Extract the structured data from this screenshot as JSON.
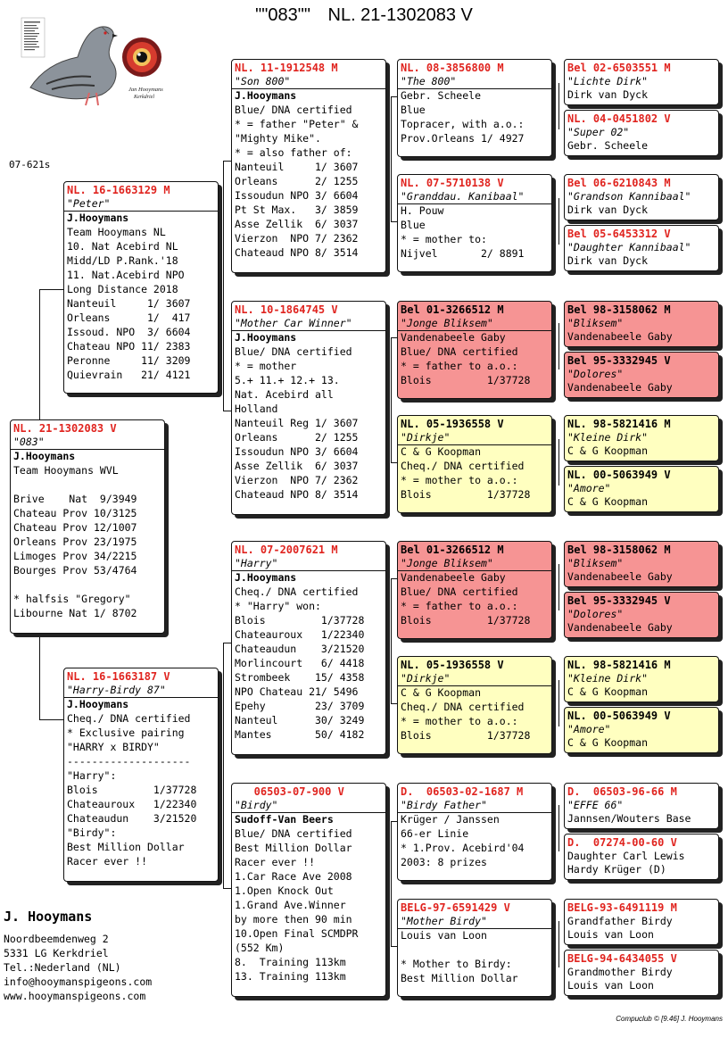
{
  "header": {
    "title": "\"\"083\"\"",
    "ring": "NL. 21-1302083 V"
  },
  "logo": {
    "pigeon_caption": "Jan Hooymans",
    "pigeon_caption2": "Kerkdriel"
  },
  "side_code": "07-621s",
  "pigeons": {
    "subject": {
      "ring": "NL. 21-1302083 V",
      "name": "\"083\"",
      "breeder": "J.Hooymans",
      "lines": [
        "Team Hooymans WVL",
        "",
        "Brive    Nat  9/3949",
        "Chateau Prov 10/3125",
        "Chateau Prov 12/1007",
        "Orleans Prov 23/1975",
        "Limoges Prov 34/2215",
        "Bourges Prov 53/4764",
        "",
        "* halfsis \"Gregory\"",
        "Libourne Nat 1/ 8702"
      ]
    },
    "father": {
      "ring": "NL. 16-1663129 M",
      "name": "\"Peter\"",
      "breeder": "J.Hooymans",
      "lines": [
        "Team Hooymans NL",
        "10. Nat Acebird NL",
        "Midd/LD P.Rank.'18",
        "11. Nat.Acebird NPO",
        "Long Distance 2018",
        "Nanteuil     1/ 3607",
        "Orleans      1/  417",
        "Issoud. NPO  3/ 6604",
        "Chateau NPO 11/ 2383",
        "Peronne     11/ 3209",
        "Quievrain   21/ 4121"
      ]
    },
    "mother": {
      "ring": "NL. 16-1663187 V",
      "name": "\"Harry-Birdy 87\"",
      "breeder": "J.Hooymans",
      "lines": [
        "Cheq./ DNA certified",
        "* Exclusive pairing",
        "\"HARRY x BIRDY\"",
        "--------------------",
        "\"Harry\":",
        "Blois         1/37728",
        "Chateauroux   1/22340",
        "Chateaudun    3/21520",
        "\"Birdy\":",
        "Best Million Dollar",
        "Racer ever !!"
      ]
    },
    "ff": {
      "ring": "NL. 11-1912548 M",
      "name": "\"Son 800\"",
      "breeder": "J.Hooymans",
      "lines": [
        "Blue/ DNA certified",
        "* = father \"Peter\" &",
        "\"Mighty Mike\".",
        "* = also father of:",
        "Nanteuil     1/ 3607",
        "Orleans      2/ 1255",
        "Issoudun NPO 3/ 6604",
        "Pt St Max.   3/ 3859",
        "Asse Zellik  6/ 3037",
        "Vierzon  NPO 7/ 2362",
        "Chateaud NPO 8/ 3514"
      ]
    },
    "fm": {
      "ring": "NL. 10-1864745 V",
      "name": "\"Mother Car Winner\"",
      "breeder": "J.Hooymans",
      "lines": [
        "Blue/ DNA certified",
        "* = mother",
        "5.+ 11.+ 12.+ 13.",
        "Nat. Acebird all",
        "Holland",
        "Nanteuil Reg 1/ 3607",
        "Orleans      2/ 1255",
        "Issoudun NPO 3/ 6604",
        "Asse Zellik  6/ 3037",
        "Vierzon  NPO 7/ 2362",
        "Chateaud NPO 8/ 3514"
      ]
    },
    "mf": {
      "ring": "NL. 07-2007621 M",
      "name": "\"Harry\"",
      "breeder": "J.Hooymans",
      "lines": [
        "Cheq./ DNA certified",
        "* \"Harry\" won:",
        "Blois         1/37728",
        "Chateauroux   1/22340",
        "Chateaudun    3/21520",
        "Morlincourt   6/ 4418",
        "Strombeek    15/ 4358",
        "NPO Chateau 21/ 5496",
        "Epehy        23/ 3709",
        "Nanteul      30/ 3249",
        "Mantes       50/ 4182"
      ]
    },
    "mm": {
      "ring": "   06503-07-900 V",
      "name": "\"Birdy\"",
      "breeder": "Sudoff-Van Beers",
      "lines": [
        "Blue/ DNA certified",
        "Best Million Dollar",
        "Racer ever !!",
        "1.Car Race Ave 2008",
        "1.Open Knock Out",
        "1.Grand Ave.Winner",
        "by more then 90 min",
        "10.Open Final SCMDPR",
        "(552 Km)",
        "8.  Training 113km",
        "13. Training 113km"
      ]
    },
    "fff": {
      "ring": "NL. 08-3856800 M",
      "name": "\"The 800\"",
      "breeder": "Gebr. Scheele",
      "lines": [
        "Blue",
        "Topracer, with a.o.:",
        "Prov.Orleans 1/ 4927"
      ]
    },
    "ffm": {
      "ring": "NL. 07-5710138 V",
      "name": "\"Granddau. Kanibaal\"",
      "breeder": "H. Pouw",
      "lines": [
        "Blue",
        "* = mother to:",
        "Nijvel       2/ 8891"
      ]
    },
    "fmf": {
      "ring": "Bel 01-3266512 M",
      "name": "\"Jonge Bliksem\"",
      "breeder": "Vandenabeele Gaby",
      "lines": [
        "Blue/ DNA certified",
        "* = father to a.o.:",
        "Blois         1/37728"
      ]
    },
    "fmm": {
      "ring": "NL. 05-1936558 V",
      "name": "\"Dirkje\"",
      "breeder": "C & G Koopman",
      "lines": [
        "Cheq./ DNA certified",
        "* = mother to a.o.:",
        "Blois         1/37728"
      ]
    },
    "mff": {
      "ring": "Bel 01-3266512 M",
      "name": "\"Jonge Bliksem\"",
      "breeder": "Vandenabeele Gaby",
      "lines": [
        "Blue/ DNA certified",
        "* = father to a.o.:",
        "Blois         1/37728"
      ]
    },
    "mfm": {
      "ring": "NL. 05-1936558 V",
      "name": "\"Dirkje\"",
      "breeder": "C & G Koopman",
      "lines": [
        "Cheq./ DNA certified",
        "* = mother to a.o.:",
        "Blois         1/37728"
      ]
    },
    "mmf": {
      "ring": "D.  06503-02-1687 M",
      "name": "\"Birdy Father\"",
      "breeder": "Krüger / Janssen",
      "lines": [
        "66-er Linie",
        "* 1.Prov. Acebird'04",
        "2003: 8 prizes"
      ]
    },
    "mmm": {
      "ring": "BELG-97-6591429 V",
      "name": "\"Mother Birdy\"",
      "breeder": "Louis van Loon",
      "lines": [
        "",
        "* Mother to Birdy:",
        "Best Million Dollar"
      ]
    },
    "g1": {
      "ring": "Bel 02-6503551 M",
      "name": "\"Lichte Dirk\"",
      "breeder": "Dirk van Dyck"
    },
    "g2": {
      "ring": "NL. 04-0451802 V",
      "name": "\"Super 02\"",
      "breeder": "Gebr. Scheele"
    },
    "g3": {
      "ring": "Bel 06-6210843 M",
      "name": "\"Grandson Kannibaal\"",
      "breeder": "Dirk van Dyck"
    },
    "g4": {
      "ring": "Bel 05-6453312 V",
      "name": "\"Daughter Kannibaal\"",
      "breeder": "Dirk van Dyck"
    },
    "g5": {
      "ring": "Bel 98-3158062 M",
      "name": "\"Bliksem\"",
      "breeder": "Vandenabeele Gaby"
    },
    "g6": {
      "ring": "Bel 95-3332945 V",
      "name": "\"Dolores\"",
      "breeder": "Vandenabeele Gaby"
    },
    "g7": {
      "ring": "NL. 98-5821416 M",
      "name": "\"Kleine Dirk\"",
      "breeder": "C & G Koopman"
    },
    "g8": {
      "ring": "NL. 00-5063949 V",
      "name": "\"Amore\"",
      "breeder": "C & G Koopman"
    },
    "g9": {
      "ring": "Bel 98-3158062 M",
      "name": "\"Bliksem\"",
      "breeder": "Vandenabeele Gaby"
    },
    "g10": {
      "ring": "Bel 95-3332945 V",
      "name": "\"Dolores\"",
      "breeder": "Vandenabeele Gaby"
    },
    "g11": {
      "ring": "NL. 98-5821416 M",
      "name": "\"Kleine Dirk\"",
      "breeder": "C & G Koopman"
    },
    "g12": {
      "ring": "NL. 00-5063949 V",
      "name": "\"Amore\"",
      "breeder": "C & G Koopman"
    },
    "g13": {
      "ring": "D.  06503-96-66 M",
      "name": "\"EFFE 66\"",
      "breeder": "Jannsen/Wouters Base"
    },
    "g14": {
      "ring": "D.  07274-00-60 V",
      "name": "Daughter Carl Lewis",
      "breeder": "Hardy Krüger (D)"
    },
    "g15": {
      "ring": "BELG-93-6491119 M",
      "name": "Grandfather Birdy",
      "breeder": "Louis van Loon"
    },
    "g16": {
      "ring": "BELG-94-6434055 V",
      "name": "Grandmother Birdy",
      "breeder": "Louis van Loon"
    }
  },
  "footer": {
    "name": "J. Hooymans",
    "address1": "Noordbeemdenweg 2",
    "address2": "5331 LG  Kerkdriel",
    "tel": "Tel.:Nederland (NL)",
    "email": "info@hooymanspigeons.com",
    "web": "www.hooymanspigeons.com"
  },
  "credit": "Compuclub © [9.46]  J. Hooymans"
}
